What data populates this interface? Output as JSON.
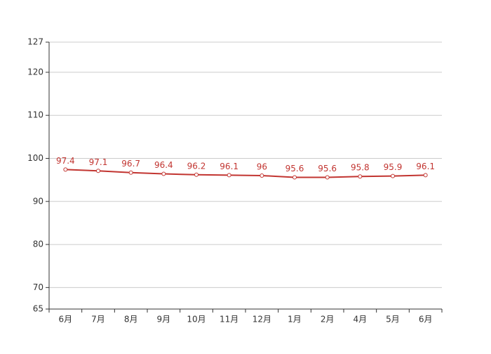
{
  "chart_data": {
    "type": "line",
    "categories": [
      "6月",
      "7月",
      "8月",
      "9月",
      "10月",
      "11月",
      "12月",
      "1月",
      "2月",
      "4月",
      "5月",
      "6月"
    ],
    "series": [
      {
        "color": "#c23531",
        "values": [
          97.4,
          97.1,
          96.7,
          96.4,
          96.2,
          96.1,
          96,
          95.6,
          95.6,
          95.8,
          95.9,
          96.1
        ]
      }
    ],
    "ylim": [
      65,
      127
    ],
    "yticks": [
      65,
      70,
      80,
      90,
      100,
      110,
      120,
      127
    ],
    "grid": true
  }
}
